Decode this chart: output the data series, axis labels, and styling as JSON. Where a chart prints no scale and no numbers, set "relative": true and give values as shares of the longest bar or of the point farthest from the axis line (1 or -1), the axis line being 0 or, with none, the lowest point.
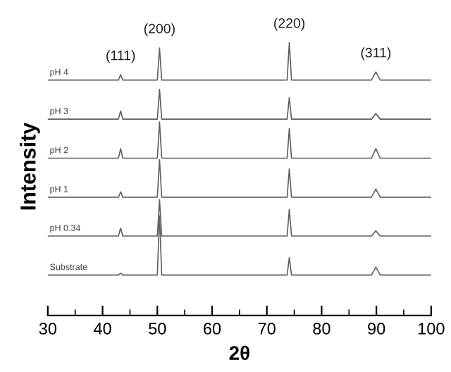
{
  "chart_data": {
    "type": "line",
    "relative": true,
    "xlabel": "2θ",
    "ylabel": "Intensity",
    "xlim": [
      30,
      100
    ],
    "xticks": [
      30,
      40,
      50,
      60,
      70,
      80,
      90,
      100
    ],
    "grid": false,
    "legend": false,
    "marker": "none",
    "line_style": "solid",
    "annotations": [
      {
        "text": "(111)",
        "x": 43.3,
        "y": 0.882
      },
      {
        "text": "(200)",
        "x": 50.4,
        "y": 0.98
      },
      {
        "text": "(220)",
        "x": 74.1,
        "y": 1.0
      },
      {
        "text": "(311)",
        "x": 89.9,
        "y": 0.892
      }
    ],
    "x": [
      30,
      42.9,
      43.3,
      43.7,
      50.0,
      50.4,
      50.8,
      73.7,
      74.1,
      74.5,
      89.1,
      89.9,
      90.7,
      100
    ],
    "series": [
      {
        "name": "pH 4",
        "color": "#606060",
        "values": [
          0.862,
          0.862,
          0.882,
          0.862,
          0.862,
          0.98,
          0.862,
          0.862,
          1.0,
          0.862,
          0.862,
          0.892,
          0.862,
          0.862
        ]
      },
      {
        "name": "pH 3",
        "color": "#606060",
        "values": [
          0.719,
          0.719,
          0.749,
          0.719,
          0.719,
          0.828,
          0.719,
          0.719,
          0.798,
          0.719,
          0.719,
          0.739,
          0.719,
          0.719
        ]
      },
      {
        "name": "pH 2",
        "color": "#606060",
        "values": [
          0.576,
          0.576,
          0.611,
          0.576,
          0.576,
          0.709,
          0.576,
          0.576,
          0.685,
          0.576,
          0.576,
          0.611,
          0.576,
          0.576
        ]
      },
      {
        "name": "pH 1",
        "color": "#606060",
        "values": [
          0.433,
          0.433,
          0.453,
          0.433,
          0.433,
          0.571,
          0.433,
          0.433,
          0.537,
          0.433,
          0.433,
          0.463,
          0.433,
          0.433
        ]
      },
      {
        "name": "pH 0.34",
        "color": "#606060",
        "values": [
          0.291,
          0.291,
          0.32,
          0.291,
          0.291,
          0.424,
          0.291,
          0.291,
          0.389,
          0.291,
          0.291,
          0.31,
          0.291,
          0.291
        ]
      },
      {
        "name": "Substrate",
        "color": "#606060",
        "values": [
          0.148,
          0.148,
          0.155,
          0.148,
          0.148,
          0.365,
          0.148,
          0.148,
          0.212,
          0.148,
          0.148,
          0.177,
          0.148,
          0.148
        ]
      }
    ]
  }
}
